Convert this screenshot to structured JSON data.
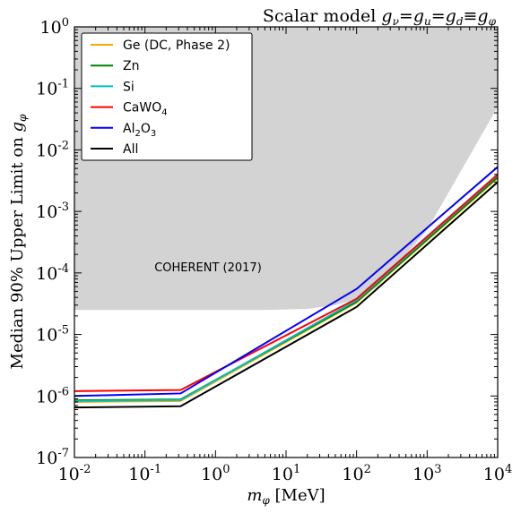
{
  "chart_data": {
    "type": "line",
    "title": "Scalar model g_ν = g_u = g_d ≡ g_φ",
    "title_parts": {
      "prefix": "Scalar model ",
      "g": "g",
      "nu": "ν",
      "u": "u",
      "d": "d",
      "phi": "φ",
      "eq": "=",
      "equiv": "≡"
    },
    "xlabel": {
      "m": "m",
      "sub": "φ",
      "rest": " [MeV]"
    },
    "ylabel": {
      "text": "Median 90% Upper Limit on ",
      "g": "g",
      "sub": "φ"
    },
    "xscale": "log",
    "yscale": "log",
    "xlim": [
      0.01,
      10000
    ],
    "ylim": [
      1e-07,
      1
    ],
    "x_ticks": [
      {
        "value": 0.01,
        "base": "10",
        "exp": "-2"
      },
      {
        "value": 0.1,
        "base": "10",
        "exp": "-1"
      },
      {
        "value": 1,
        "base": "10",
        "exp": "0"
      },
      {
        "value": 10,
        "base": "10",
        "exp": "1"
      },
      {
        "value": 100,
        "base": "10",
        "exp": "2"
      },
      {
        "value": 1000,
        "base": "10",
        "exp": "3"
      },
      {
        "value": 10000,
        "base": "10",
        "exp": "4"
      }
    ],
    "y_ticks": [
      {
        "value": 1e-07,
        "base": "10",
        "exp": "-7"
      },
      {
        "value": 1e-06,
        "base": "10",
        "exp": "-6"
      },
      {
        "value": 1e-05,
        "base": "10",
        "exp": "-5"
      },
      {
        "value": 0.0001,
        "base": "10",
        "exp": "-4"
      },
      {
        "value": 0.001,
        "base": "10",
        "exp": "-3"
      },
      {
        "value": 0.01,
        "base": "10",
        "exp": "-2"
      },
      {
        "value": 0.1,
        "base": "10",
        "exp": "-1"
      },
      {
        "value": 1,
        "base": "10",
        "exp": "0"
      }
    ],
    "excluded_region": {
      "label": "COHERENT (2017)",
      "color": "#d3d3d3",
      "boundary": [
        {
          "x": 0.01,
          "y": 2.5e-05
        },
        {
          "x": 5,
          "y": 2.5e-05
        },
        {
          "x": 20,
          "y": 2.6e-05
        },
        {
          "x": 50,
          "y": 3e-05
        },
        {
          "x": 100,
          "y": 3.7e-05
        },
        {
          "x": 200,
          "y": 6e-05
        },
        {
          "x": 500,
          "y": 0.0002
        },
        {
          "x": 1000,
          "y": 0.0005
        },
        {
          "x": 10000,
          "y": 0.05
        }
      ]
    },
    "series": [
      {
        "name": "Ge (DC, Phase 2)",
        "color": "#ffa500",
        "points": [
          {
            "x": 0.01,
            "y": 8e-07
          },
          {
            "x": 0.32,
            "y": 8.3e-07
          },
          {
            "x": 100,
            "y": 3.3e-05
          },
          {
            "x": 10000,
            "y": 0.0035
          }
        ]
      },
      {
        "name": "Zn",
        "color": "#008000",
        "points": [
          {
            "x": 0.01,
            "y": 8.5e-07
          },
          {
            "x": 0.32,
            "y": 8.8e-07
          },
          {
            "x": 100,
            "y": 3.4e-05
          },
          {
            "x": 10000,
            "y": 0.0036
          }
        ]
      },
      {
        "name": "Si",
        "color": "#00bfbf",
        "points": [
          {
            "x": 0.01,
            "y": 8.3e-07
          },
          {
            "x": 0.32,
            "y": 8.6e-07
          },
          {
            "x": 100,
            "y": 3.6e-05
          },
          {
            "x": 10000,
            "y": 0.0039
          }
        ]
      },
      {
        "name": "CaWO",
        "name_sub": "4",
        "color": "#ff0000",
        "points": [
          {
            "x": 0.01,
            "y": 1.2e-06
          },
          {
            "x": 0.32,
            "y": 1.25e-06
          },
          {
            "x": 100,
            "y": 3.8e-05
          },
          {
            "x": 10000,
            "y": 0.004
          }
        ]
      },
      {
        "name": "Al",
        "name_sub": "2",
        "name_mid": "O",
        "name_sub2": "3",
        "color": "#0000ff",
        "points": [
          {
            "x": 0.01,
            "y": 1e-06
          },
          {
            "x": 0.32,
            "y": 1.1e-06
          },
          {
            "x": 100,
            "y": 5.5e-05
          },
          {
            "x": 10000,
            "y": 0.0053
          }
        ]
      },
      {
        "name": "All",
        "color": "#000000",
        "points": [
          {
            "x": 0.01,
            "y": 6.5e-07
          },
          {
            "x": 0.32,
            "y": 6.8e-07
          },
          {
            "x": 100,
            "y": 2.8e-05
          },
          {
            "x": 10000,
            "y": 0.003
          }
        ]
      }
    ],
    "legend_placement": "top-left",
    "grid": false
  }
}
